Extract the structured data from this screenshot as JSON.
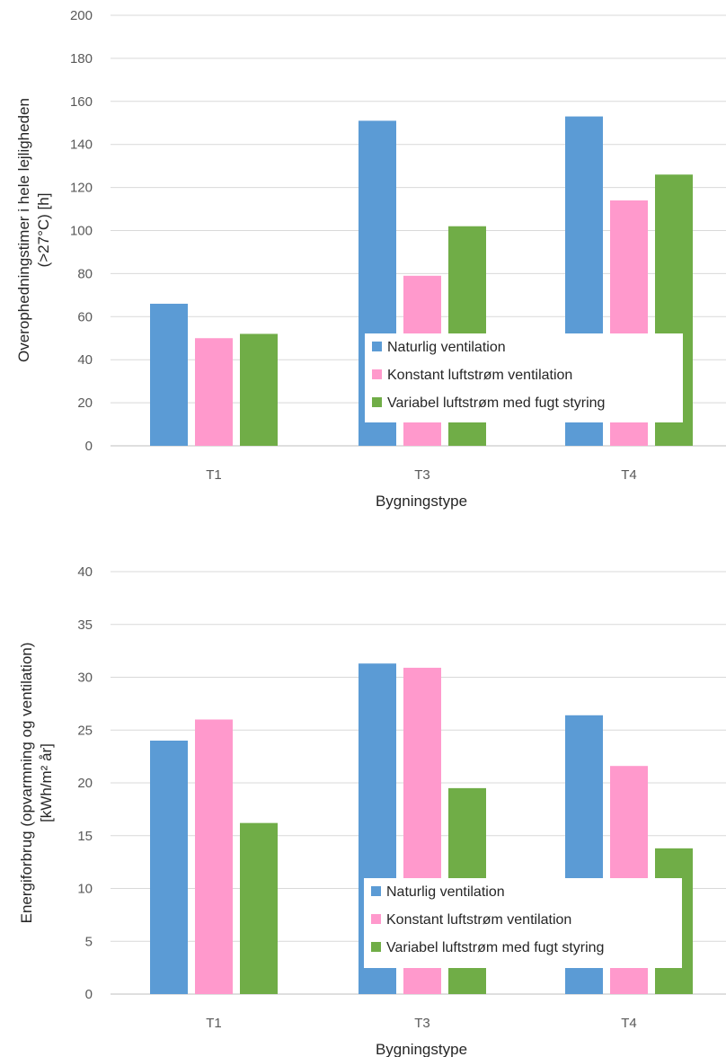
{
  "chart_data": [
    {
      "type": "bar",
      "categories": [
        "T1",
        "T3",
        "T4"
      ],
      "series": [
        {
          "name": "Naturlig ventilation",
          "color": "#5B9BD5",
          "values": [
            66,
            151,
            153
          ]
        },
        {
          "name": "Konstant luftstrøm ventilation",
          "color": "#FF99CC",
          "values": [
            50,
            79,
            114
          ]
        },
        {
          "name": "Variabel luftstrøm med fugt styring",
          "color": "#70AD47",
          "values": [
            52,
            102,
            126
          ]
        }
      ],
      "xlabel": "Bygningstype",
      "ylabel_lines": [
        "Overophedningstimer i hele lejligheden",
        "(>27°C) [h]"
      ],
      "ylim": [
        0,
        200
      ],
      "yticks": [
        "0",
        "20",
        "40",
        "60",
        "80",
        "100",
        "120",
        "140",
        "160",
        "180",
        "200"
      ],
      "grid": true,
      "legend_position": "bottom-right"
    },
    {
      "type": "bar",
      "categories": [
        "T1",
        "T3",
        "T4"
      ],
      "series": [
        {
          "name": "Naturlig ventilation",
          "color": "#5B9BD5",
          "values": [
            24,
            31.3,
            26.4
          ]
        },
        {
          "name": "Konstant luftstrøm ventilation",
          "color": "#FF99CC",
          "values": [
            26,
            30.9,
            21.6
          ]
        },
        {
          "name": "Variabel luftstrøm med fugt styring",
          "color": "#70AD47",
          "values": [
            16.2,
            19.5,
            13.8
          ]
        }
      ],
      "xlabel": "Bygningstype",
      "ylabel_lines": [
        "Energiforbrug (opvarmning og ventilation)",
        "[kWh/m² år]"
      ],
      "ylim": [
        0,
        40
      ],
      "yticks": [
        "0",
        "5",
        "10",
        "15",
        "20",
        "25",
        "30",
        "35",
        "40"
      ],
      "grid": true,
      "legend_position": "bottom-right"
    }
  ]
}
